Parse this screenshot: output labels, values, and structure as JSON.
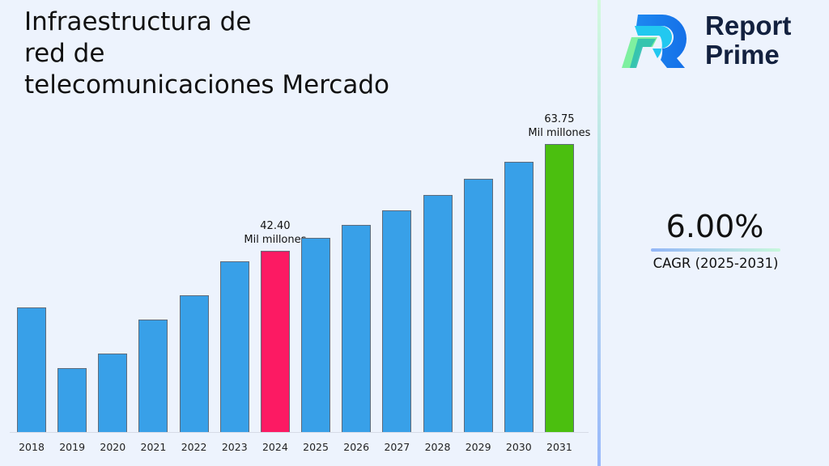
{
  "title": {
    "line1": "Infraestructura de",
    "line2": "red de",
    "line3": "telecomunicaciones Mercado"
  },
  "logo": {
    "line1": "Report",
    "line2": "Prime"
  },
  "cagr": {
    "value": "6.00%",
    "label": "CAGR (2025-2031)"
  },
  "annotations": {
    "a2024": {
      "value": "42.40",
      "unit": "Mil millones"
    },
    "a2031": {
      "value": "63.75",
      "unit": "Mil millones"
    }
  },
  "colors": {
    "default_bar": "#38a0e8",
    "highlight_2024": "#fc1a63",
    "highlight_2031": "#4bbf0f",
    "background": "#edf3fd"
  },
  "chart_data": {
    "type": "bar",
    "title": "Infraestructura de red de telecomunicaciones Mercado",
    "xlabel": "",
    "ylabel": "",
    "unit": "Mil millones",
    "categories": [
      "2018",
      "2019",
      "2020",
      "2021",
      "2022",
      "2023",
      "2024",
      "2025",
      "2026",
      "2027",
      "2028",
      "2029",
      "2030",
      "2031"
    ],
    "values": [
      31.1,
      18.9,
      21.9,
      28.7,
      33.5,
      40.3,
      42.4,
      44.94,
      47.64,
      50.5,
      53.53,
      56.74,
      60.14,
      63.75
    ],
    "bar_colors": [
      "#38a0e8",
      "#38a0e8",
      "#38a0e8",
      "#38a0e8",
      "#38a0e8",
      "#38a0e8",
      "#fc1a63",
      "#38a0e8",
      "#38a0e8",
      "#38a0e8",
      "#38a0e8",
      "#38a0e8",
      "#38a0e8",
      "#4bbf0f"
    ],
    "labeled_points": [
      {
        "category": "2024",
        "label": "42.40 Mil millones"
      },
      {
        "category": "2031",
        "label": "63.75 Mil millones"
      }
    ],
    "cagr": "6.00%",
    "cagr_period": "2025-2031",
    "grid": false,
    "legend": "none",
    "yaxis_visible": false
  }
}
